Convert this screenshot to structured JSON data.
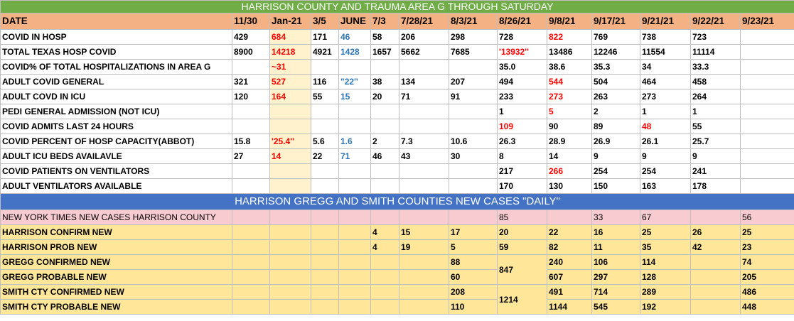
{
  "title1": "HARRISON COUNTY  AND  TRAUMA AREA G THROUGH SATURDAY",
  "title2": "HARRISON GREGG AND SMITH COUNTIES NEW CASES \"DAILY\"",
  "header": [
    "DATE",
    "11/30",
    "Jan-21",
    "3/5",
    "JUNE",
    "7/3",
    "7/28/21",
    "8/3/21",
    "8/26/21",
    "9/8/21",
    "9/17/21",
    "9/21/21",
    "9/22/21",
    "9/23/21"
  ],
  "rows1": [
    {
      "label": "COVID IN HOSP",
      "cells": [
        "429",
        "684",
        "171",
        "46",
        "58",
        "206",
        "298",
        "728",
        "822",
        "769",
        "738",
        "723",
        ""
      ]
    },
    {
      "label": "TOTAL TEXAS HOSP COVID",
      "cells": [
        "8900",
        "14218",
        "4921",
        "1428",
        "1657",
        "5662",
        "7685",
        "'13932''",
        "13486",
        "12246",
        "11554",
        "11114",
        ""
      ]
    },
    {
      "label": "COVID% OF TOTAL HOSPITALIZATIONS IN AREA G",
      "cells": [
        "",
        "~31",
        "",
        "",
        "",
        "",
        "",
        "35.0",
        "38.6",
        "35.3",
        "34",
        "33.3",
        ""
      ]
    },
    {
      "label": "ADULT COVID GENERAL",
      "cells": [
        "321",
        "527",
        "116",
        "\"22''",
        "38",
        "134",
        "207",
        "494",
        "544",
        "504",
        "464",
        "458",
        ""
      ]
    },
    {
      "label": "ADULT COVD IN ICU",
      "cells": [
        "120",
        "164",
        "55",
        "15",
        "20",
        "71",
        "91",
        "233",
        "273",
        "263",
        "273",
        "264",
        ""
      ]
    },
    {
      "label": "PEDI GENERAL ADMISSION (NOT ICU)",
      "cells": [
        "",
        "",
        "",
        "",
        "",
        "",
        "",
        "1",
        "5",
        "2",
        "1",
        "1",
        ""
      ]
    },
    {
      "label": "COVID ADMITS LAST 24 HOURS",
      "cells": [
        "",
        "",
        "",
        "",
        "",
        "",
        "",
        "109",
        "90",
        "89",
        "48",
        "55",
        ""
      ]
    },
    {
      "label": "COVID PERCENT OF HOSP  CAPACITY(ABBOT)",
      "cells": [
        "15.8",
        "'25.4''",
        "5.6",
        "1.6",
        "2",
        "7.3",
        "10.6",
        "26.3",
        "28.9",
        "26.9",
        "26.1",
        "25.7",
        ""
      ]
    },
    {
      "label": "ADULT ICU BEDS AVAILAVLE",
      "cells": [
        "27",
        "14",
        "22",
        "71",
        "46",
        "43",
        "30",
        "8",
        "14",
        "9",
        "9",
        "9",
        ""
      ]
    },
    {
      "label": "COVID PATIENTS ON VENTILATORS",
      "cells": [
        "",
        "",
        "",
        "",
        "",
        "",
        "",
        "217",
        "266",
        "254",
        "254",
        "241",
        ""
      ]
    },
    {
      "label": "ADULT VENTILATORS AVAILABLE",
      "cells": [
        "",
        "",
        "",
        "",
        "",
        "",
        "",
        "170",
        "130",
        "150",
        "163",
        "178",
        ""
      ]
    }
  ],
  "nyt": {
    "label": "NEW YORK TIMES NEW CASES HARRISON COUNTY",
    "cells": [
      "",
      "",
      "",
      "",
      "",
      "",
      "",
      "85",
      "",
      "33",
      "67",
      "",
      "56"
    ]
  },
  "rows2": [
    {
      "label": "HARRISON CONFIRM NEW",
      "cells": [
        "",
        "",
        "",
        "",
        "4",
        "15",
        "17",
        "20",
        "22",
        "16",
        "25",
        "26",
        "25"
      ]
    },
    {
      "label": "HARRISON PROB NEW",
      "cells": [
        "",
        "",
        "",
        "",
        "4",
        "19",
        "5",
        "59",
        "82",
        "11",
        "35",
        "42",
        "23"
      ]
    },
    {
      "label": "GREGG CONFIRMED NEW",
      "cells": [
        "",
        "",
        "",
        "",
        "",
        "",
        "88",
        "",
        "240",
        "106",
        "114",
        "",
        "74"
      ]
    },
    {
      "label": "GREGG PROBABLE NEW",
      "cells": [
        "",
        "",
        "",
        "",
        "",
        "",
        "60",
        "847",
        "607",
        "297",
        "128",
        "",
        "205"
      ]
    },
    {
      "label": "SMITH  CTY CONFIRMED NEW",
      "cells": [
        "",
        "",
        "",
        "",
        "",
        "",
        "208",
        "",
        "491",
        "714",
        "289",
        "",
        "486"
      ]
    },
    {
      "label": "SMITH  CTY PROBABLE NEW",
      "cells": [
        "",
        "",
        "",
        "",
        "",
        "",
        "110",
        "1214",
        "1144",
        "545",
        "192",
        "",
        "448"
      ]
    }
  ],
  "colors": {
    "green": "#70ad47",
    "peach": "#f4b183",
    "blue": "#4472c4",
    "pink": "#f8cbd0",
    "yellow": "#ffe699",
    "light_yellow": "#fff2cc",
    "red": "#ff0000",
    "blue_text": "#2e75b6"
  }
}
